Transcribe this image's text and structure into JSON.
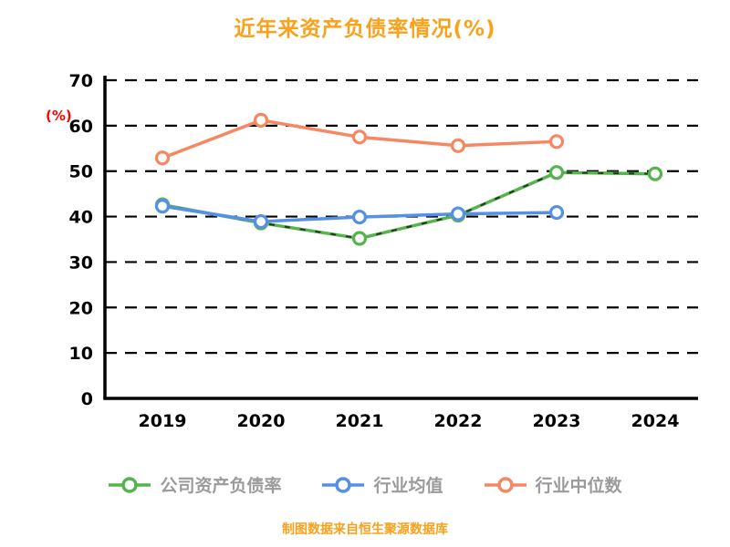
{
  "chart_data": {
    "type": "line",
    "title": "近年来资产负债率情况(%)",
    "ylabel": "(%)",
    "categories": [
      "2019",
      "2020",
      "2021",
      "2022",
      "2023",
      "2024"
    ],
    "ylim": [
      0,
      70
    ],
    "yticks": [
      0,
      10,
      20,
      30,
      40,
      50,
      60,
      70
    ],
    "grid": "dashed-horizontal",
    "legend_position": "bottom",
    "series": [
      {
        "name": "公司资产负债率",
        "color": "#56B44C",
        "overlay_dash": true,
        "values": [
          42.6,
          38.6,
          35.2,
          40.3,
          49.7,
          49.4
        ]
      },
      {
        "name": "行业均值",
        "color": "#5590E7",
        "overlay_dash": false,
        "values": [
          42.3,
          38.9,
          39.9,
          40.6,
          40.9,
          null
        ]
      },
      {
        "name": "行业中位数",
        "color": "#F58862",
        "overlay_dash": false,
        "values": [
          52.9,
          61.2,
          57.5,
          55.6,
          56.5,
          null
        ]
      }
    ]
  },
  "footer": {
    "caption": "制图数据来自恒生聚源数据库"
  },
  "colors": {
    "title": "#F9A11B",
    "ylabel": "#FF0000",
    "axis": "#000000",
    "gridline": "#000000",
    "legend_text": "#9B9B9B",
    "marker_fill": "#FFFFFF"
  }
}
